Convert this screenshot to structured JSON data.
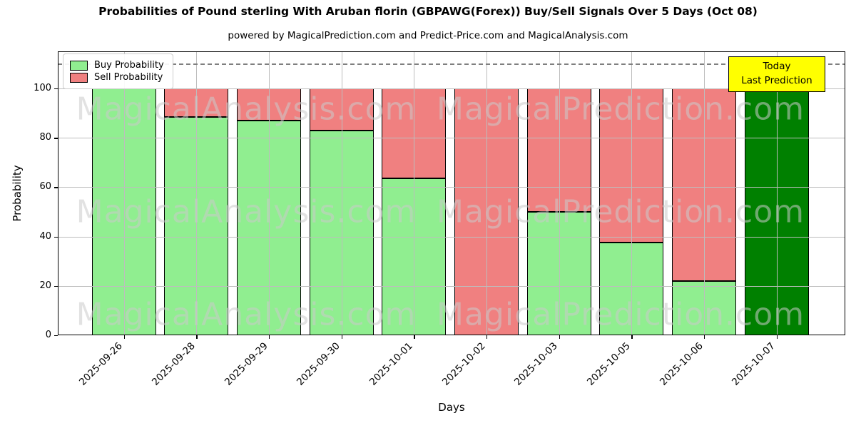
{
  "title": "Probabilities of Pound sterling With Aruban florin (GBPAWG(Forex)) Buy/Sell Signals Over 5 Days (Oct 08)",
  "subtitle": "powered by MagicalPrediction.com and Predict-Price.com and MagicalAnalysis.com",
  "legend": {
    "buy_label": "Buy Probability",
    "sell_label": "Sell Probability"
  },
  "annotation": {
    "line1": "Today",
    "line2": "Last Prediction"
  },
  "axes": {
    "xlabel": "Days",
    "ylabel": "Probability",
    "yticks": [
      0,
      20,
      40,
      60,
      80,
      100
    ],
    "ylim": [
      0,
      115
    ],
    "dashed_line_y": 110
  },
  "watermark": {
    "left_text": "MagicalAnalysis.com",
    "right_text": "MagicalPrediction.com"
  },
  "colors": {
    "buy": "#90EE90",
    "sell": "#F08080",
    "today_bar": "#008000",
    "annotation_bg": "#FFFF00",
    "bar_edge": "#000000",
    "grid": "#bdbdbd",
    "dashed_line": "#7f7f7f"
  },
  "chart_data": {
    "type": "bar",
    "stacked": true,
    "title": "Probabilities of Pound sterling With Aruban florin (GBPAWG(Forex)) Buy/Sell Signals Over 5 Days (Oct 08)",
    "xlabel": "Days",
    "ylabel": "Probability",
    "ylim": [
      0,
      115
    ],
    "grid": true,
    "legend_position": "upper left",
    "categories": [
      "2025-09-26",
      "2025-09-28",
      "2025-09-29",
      "2025-09-30",
      "2025-10-01",
      "2025-10-02",
      "2025-10-03",
      "2025-10-05",
      "2025-10-06",
      "2025-10-07"
    ],
    "series": [
      {
        "name": "Buy Probability",
        "color": "#90EE90",
        "values": [
          100,
          88.5,
          87,
          83,
          63.5,
          0,
          50,
          37.5,
          22,
          100
        ]
      },
      {
        "name": "Sell Probability",
        "color": "#F08080",
        "values": [
          0,
          11.5,
          13,
          17,
          36.5,
          100,
          50,
          62.5,
          78,
          0
        ]
      }
    ],
    "today_bar": {
      "index": 9,
      "category": "2025-10-07",
      "color": "#008000",
      "value": 100
    }
  }
}
